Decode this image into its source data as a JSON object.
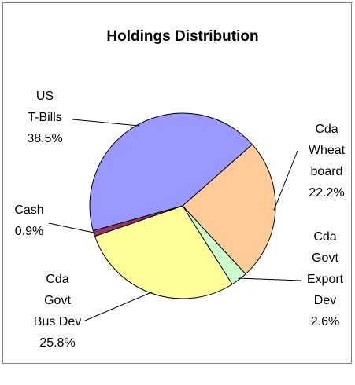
{
  "chart_data": {
    "type": "pie",
    "title": "Holdings Distribution",
    "categories": [
      [
        "Cda",
        "Wheat",
        "board"
      ],
      [
        "Cda",
        "Govt",
        "Export",
        "Dev"
      ],
      [
        "Cda",
        "Govt",
        "Bus Dev"
      ],
      [
        "Cash"
      ],
      [
        "US",
        "T-Bills"
      ]
    ],
    "values": [
      22.2,
      2.6,
      25.8,
      0.9,
      38.5
    ],
    "value_labels": [
      "22.2%",
      "2.6%",
      "25.8%",
      "0.9%",
      "38.5%"
    ],
    "colors": [
      "#ffcc99",
      "#ccffcc",
      "#ffff99",
      "#993366",
      "#9999ff"
    ]
  }
}
